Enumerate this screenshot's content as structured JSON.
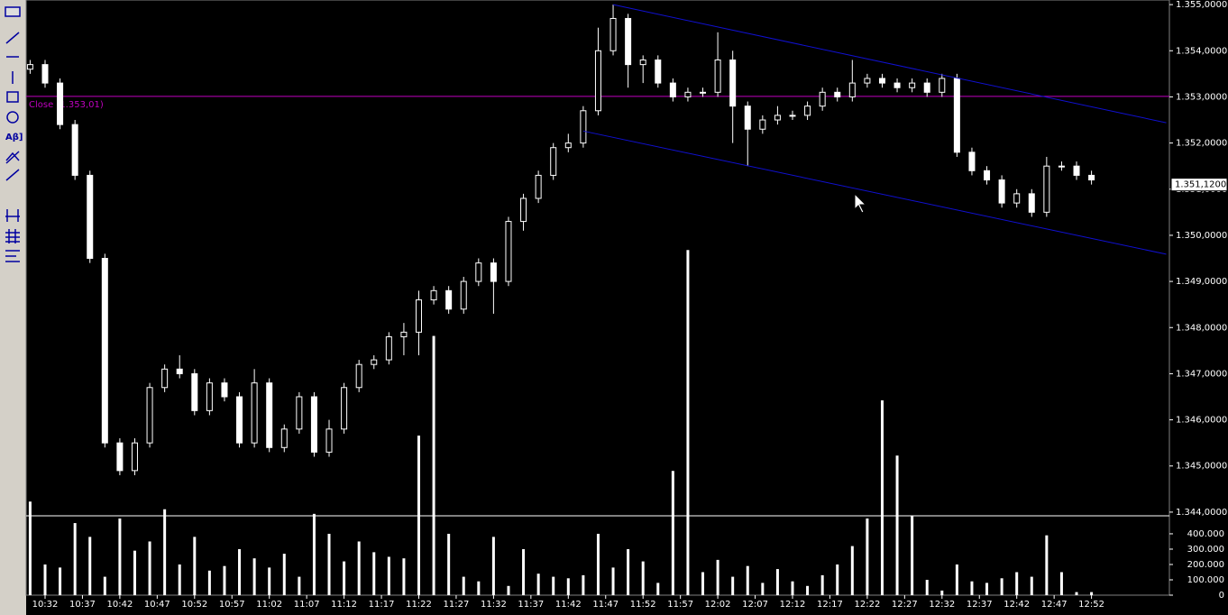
{
  "chart_data": {
    "type": "candlestick",
    "x": [
      "10:30",
      "10:32",
      "10:34",
      "10:36",
      "10:38",
      "10:40",
      "10:42",
      "10:44",
      "10:46",
      "10:48",
      "10:50",
      "10:52",
      "10:54",
      "10:56",
      "10:58",
      "11:00",
      "11:02",
      "11:04",
      "11:06",
      "11:08",
      "11:10",
      "11:12",
      "11:14",
      "11:16",
      "11:18",
      "11:20",
      "11:22",
      "11:24",
      "11:26",
      "11:28",
      "11:30",
      "11:32",
      "11:34",
      "11:36",
      "11:38",
      "11:40",
      "11:42",
      "11:44",
      "11:46",
      "11:48",
      "11:50",
      "11:52",
      "11:54",
      "11:56",
      "11:58",
      "12:00",
      "12:02",
      "12:04",
      "12:06",
      "12:08",
      "12:10",
      "12:12",
      "12:14",
      "12:16",
      "12:18",
      "12:20",
      "12:22",
      "12:24",
      "12:26",
      "12:28",
      "12:30",
      "12:32",
      "12:34",
      "12:36",
      "12:38",
      "12:40",
      "12:42",
      "12:44",
      "12:46",
      "12:48",
      "12:50",
      "12:52"
    ],
    "open": [
      1.3536,
      1.3537,
      1.3533,
      1.3524,
      1.3513,
      1.3495,
      1.3455,
      1.3449,
      1.3455,
      1.3467,
      1.3471,
      1.347,
      1.3462,
      1.3468,
      1.3465,
      1.3455,
      1.3468,
      1.3454,
      1.3458,
      1.3465,
      1.3453,
      1.3458,
      1.3467,
      1.3472,
      1.3473,
      1.3478,
      1.3479,
      1.3486,
      1.3488,
      1.3484,
      1.349,
      1.3494,
      1.349,
      1.3503,
      1.3508,
      1.3513,
      1.3519,
      1.352,
      1.3527,
      1.354,
      1.3547,
      1.3537,
      1.3538,
      1.3533,
      1.353,
      1.3531,
      1.3531,
      1.3538,
      1.3528,
      1.3523,
      1.3525,
      1.3526,
      1.3526,
      1.3528,
      1.3531,
      1.353,
      1.3533,
      1.3534,
      1.3533,
      1.3532,
      1.3533,
      1.3531,
      1.3534,
      1.3518,
      1.3514,
      1.3512,
      1.3507,
      1.3509,
      1.3505,
      1.3515,
      1.3515,
      1.3513
    ],
    "high": [
      1.3538,
      1.3538,
      1.3534,
      1.3525,
      1.3514,
      1.3496,
      1.3456,
      1.3456,
      1.3468,
      1.3472,
      1.3474,
      1.3471,
      1.3469,
      1.3469,
      1.3466,
      1.3471,
      1.3469,
      1.3459,
      1.3466,
      1.3466,
      1.346,
      1.3468,
      1.3473,
      1.3474,
      1.3479,
      1.3481,
      1.3488,
      1.3489,
      1.3489,
      1.3491,
      1.3495,
      1.3495,
      1.3504,
      1.3509,
      1.3514,
      1.352,
      1.3522,
      1.3528,
      1.3545,
      1.355,
      1.3548,
      1.3539,
      1.3539,
      1.3534,
      1.3532,
      1.3532,
      1.3544,
      1.354,
      1.3529,
      1.3526,
      1.3528,
      1.3527,
      1.3529,
      1.3532,
      1.3532,
      1.3538,
      1.3535,
      1.3535,
      1.3534,
      1.3534,
      1.3534,
      1.3535,
      1.3535,
      1.3519,
      1.3515,
      1.3513,
      1.351,
      1.351,
      1.3517,
      1.3516,
      1.3516,
      1.3514
    ],
    "low": [
      1.3535,
      1.3532,
      1.3523,
      1.3512,
      1.3494,
      1.3454,
      1.3448,
      1.3448,
      1.3454,
      1.3466,
      1.3469,
      1.3461,
      1.3461,
      1.3464,
      1.3454,
      1.3454,
      1.3453,
      1.3453,
      1.3457,
      1.3452,
      1.3452,
      1.3457,
      1.3466,
      1.3471,
      1.3472,
      1.3474,
      1.3474,
      1.3485,
      1.3483,
      1.3483,
      1.3489,
      1.3483,
      1.3489,
      1.3501,
      1.3507,
      1.3512,
      1.3518,
      1.3519,
      1.3526,
      1.3539,
      1.3532,
      1.3533,
      1.3532,
      1.3529,
      1.3529,
      1.353,
      1.353,
      1.352,
      1.3515,
      1.3522,
      1.3524,
      1.3525,
      1.3525,
      1.3527,
      1.3529,
      1.3529,
      1.3532,
      1.3532,
      1.3531,
      1.3531,
      1.353,
      1.353,
      1.3517,
      1.3513,
      1.3511,
      1.3506,
      1.3506,
      1.3504,
      1.3504,
      1.3514,
      1.3512,
      1.3511
    ],
    "close": [
      1.3537,
      1.3533,
      1.3524,
      1.3513,
      1.3495,
      1.3455,
      1.3449,
      1.3455,
      1.3467,
      1.3471,
      1.347,
      1.3462,
      1.3468,
      1.3465,
      1.3455,
      1.3468,
      1.3454,
      1.3458,
      1.3465,
      1.3453,
      1.3458,
      1.3467,
      1.3472,
      1.3473,
      1.3478,
      1.3479,
      1.3486,
      1.3488,
      1.3484,
      1.349,
      1.3494,
      1.349,
      1.3503,
      1.3508,
      1.3513,
      1.3519,
      1.352,
      1.3527,
      1.354,
      1.3547,
      1.3537,
      1.3538,
      1.3533,
      1.353,
      1.3531,
      1.3531,
      1.3538,
      1.3528,
      1.3523,
      1.3525,
      1.3526,
      1.3526,
      1.3528,
      1.3531,
      1.353,
      1.3533,
      1.3534,
      1.3533,
      1.3532,
      1.3533,
      1.3531,
      1.3534,
      1.3518,
      1.3514,
      1.3512,
      1.3507,
      1.3509,
      1.3505,
      1.3515,
      1.3515,
      1.3513,
      1.3512
    ],
    "volume": [
      610000,
      200000,
      180000,
      470000,
      380000,
      120000,
      500000,
      290000,
      350000,
      560000,
      200000,
      380000,
      160000,
      190000,
      300000,
      240000,
      180000,
      270000,
      120000,
      530000,
      400000,
      220000,
      350000,
      280000,
      250000,
      240000,
      1040000,
      1690000,
      400000,
      120000,
      90000,
      380000,
      60000,
      300000,
      140000,
      120000,
      110000,
      130000,
      400000,
      180000,
      300000,
      220000,
      80000,
      810000,
      2250000,
      150000,
      230000,
      120000,
      190000,
      80000,
      170000,
      90000,
      60000,
      130000,
      200000,
      320000,
      500000,
      1270000,
      910000,
      520000,
      100000,
      30000,
      200000,
      90000,
      80000,
      110000,
      150000,
      120000,
      390000,
      150000,
      20000,
      20000
    ],
    "ylim": [
      1.3422,
      1.3551
    ],
    "yticks": [
      {
        "value": 1.355,
        "label": "1.355,0000"
      },
      {
        "value": 1.354,
        "label": "1.354,0000"
      },
      {
        "value": 1.353,
        "label": "1.353,0000"
      },
      {
        "value": 1.352,
        "label": "1.352,0000"
      },
      {
        "value": 1.351,
        "label": "1.351,0000"
      },
      {
        "value": 1.35,
        "label": "1.350,0000"
      },
      {
        "value": 1.349,
        "label": "1.349,0000"
      },
      {
        "value": 1.348,
        "label": "1.348,0000"
      },
      {
        "value": 1.347,
        "label": "1.347,0000"
      },
      {
        "value": 1.346,
        "label": "1.346,0000"
      },
      {
        "value": 1.345,
        "label": "1.345,0000"
      },
      {
        "value": 1.344,
        "label": "1.344,0000"
      }
    ],
    "y2lim": [
      0,
      3880000
    ],
    "y2ticks": [
      {
        "value": 400000,
        "label": "400.000"
      },
      {
        "value": 300000,
        "label": "300.000"
      },
      {
        "value": 200000,
        "label": "200.000"
      },
      {
        "value": 100000,
        "label": "100.000"
      },
      0
    ],
    "xticks": [
      "10:32",
      "10:37",
      "10:42",
      "10:47",
      "10:52",
      "10:57",
      "11:02",
      "11:07",
      "11:12",
      "11:17",
      "11:22",
      "11:27",
      "11:32",
      "11:37",
      "11:42",
      "11:47",
      "11:52",
      "11:57",
      "12:02",
      "12:07",
      "12:12",
      "12:17",
      "12:22",
      "12:27",
      "12:32",
      "12:37",
      "12:42",
      "12:47",
      "12:52"
    ],
    "close_line": {
      "value": 1.35301,
      "label": "Close (1.353,01)",
      "color": "#c000c0"
    },
    "last_price": {
      "value": 1.3511,
      "label": "1.351,1200"
    },
    "channel": [
      {
        "color": "#1010d0",
        "from": {
          "t": "11:48",
          "p": 1.355
        },
        "to": {
          "t": "13:02",
          "p": 1.35244
        }
      },
      {
        "color": "#1010d0",
        "from": {
          "t": "11:44",
          "p": 1.35226
        },
        "to": {
          "t": "13:02",
          "p": 1.34959
        }
      }
    ],
    "toolbar_text": "Aβ]"
  }
}
